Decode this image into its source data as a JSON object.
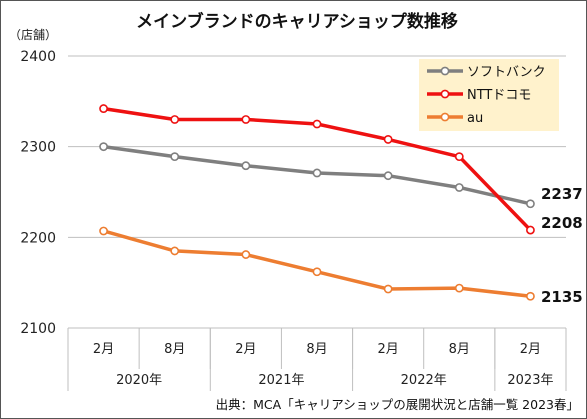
{
  "chart_data": {
    "type": "line",
    "title": "メインブランドのキャリアショップ数推移",
    "unit_label": "（店舗）",
    "categories": [
      "2月",
      "8月",
      "2月",
      "8月",
      "2月",
      "8月",
      "2月"
    ],
    "year_groups": [
      {
        "label": "2020年",
        "span": 2
      },
      {
        "label": "2021年",
        "span": 2
      },
      {
        "label": "2022年",
        "span": 2
      },
      {
        "label": "2023年",
        "span": 1
      }
    ],
    "ylim": [
      2100,
      2400
    ],
    "yticks": [
      2100,
      2200,
      2300,
      2400
    ],
    "grid": true,
    "legend_position": "top-right",
    "series": [
      {
        "name": "ソフトバンク",
        "color": "#7f7f7f",
        "values": [
          2300,
          2289,
          2279,
          2271,
          2268,
          2255,
          2237
        ],
        "end_label": "2237"
      },
      {
        "name": "NTTドコモ",
        "color": "#ee1111",
        "values": [
          2342,
          2330,
          2330,
          2325,
          2308,
          2289,
          2208
        ],
        "end_label": "2208"
      },
      {
        "name": "au",
        "color": "#ed7d31",
        "values": [
          2207,
          2185,
          2181,
          2162,
          2143,
          2144,
          2135
        ],
        "end_label": "2135"
      }
    ],
    "source": "出典：MCA「キャリアショップの展開状況と店舗一覧 2023春」"
  }
}
